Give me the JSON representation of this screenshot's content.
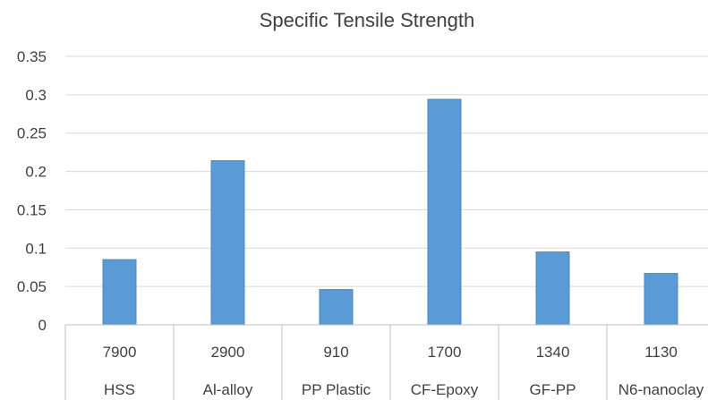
{
  "chart_data": {
    "type": "bar",
    "title": "Specific Tensile Strength",
    "categories": [
      "HSS",
      "Al-alloy",
      "PP Plastic",
      "CF-Epoxy",
      "GF-PP",
      "N6-nanoclay"
    ],
    "category_values": [
      "7900",
      "2900",
      "910",
      "1700",
      "1340",
      "1130"
    ],
    "values": [
      0.085,
      0.214,
      0.046,
      0.294,
      0.095,
      0.067
    ],
    "ylim": [
      0,
      0.35
    ],
    "yticks": [
      "0",
      "0.05",
      "0.1",
      "0.15",
      "0.2",
      "0.25",
      "0.3",
      "0.35"
    ],
    "grid": true,
    "bar_color": "#5b9bd5"
  }
}
